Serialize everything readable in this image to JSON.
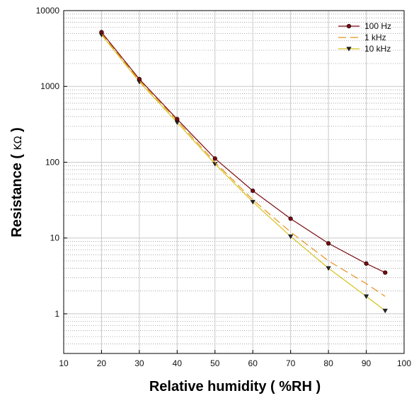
{
  "chart_data": {
    "type": "line",
    "title": "",
    "xlabel": "Relative humidity ( %RH )",
    "ylabel": "Resistance ( ",
    "ylabel_unit": "KΩ",
    "ylabel_end": " )",
    "x_scale": "linear",
    "y_scale": "log",
    "xlim": [
      10,
      100
    ],
    "ylim": [
      0.3,
      10000
    ],
    "x_ticks": [
      "10",
      "20",
      "30",
      "40",
      "50",
      "60",
      "70",
      "80",
      "90",
      "100"
    ],
    "y_ticks": [
      "1",
      "10",
      "100",
      "1000",
      "10000"
    ],
    "grid": "on",
    "legend_position": "top-right",
    "series": [
      {
        "name": "100 Hz",
        "color": "#7a0a10",
        "marker": "circle",
        "line": "solid",
        "x": [
          20,
          30,
          40,
          50,
          60,
          70,
          80,
          90,
          95
        ],
        "y": [
          5200,
          1250,
          370,
          112,
          42,
          18,
          8.5,
          4.6,
          3.5
        ]
      },
      {
        "name": "1 kHz",
        "color": "#e8901c",
        "marker": "none",
        "line": "dashed",
        "x": [
          20,
          30,
          40,
          50,
          60,
          70,
          80,
          90,
          95
        ],
        "y": [
          5000,
          1200,
          355,
          100,
          32,
          12,
          5.0,
          2.5,
          1.7
        ]
      },
      {
        "name": "10 kHz",
        "color": "#d4c21a",
        "marker": "triangle-down",
        "line": "solid",
        "x": [
          20,
          30,
          40,
          50,
          60,
          70,
          80,
          90,
          95
        ],
        "y": [
          4800,
          1150,
          335,
          95,
          30,
          10.5,
          4.0,
          1.7,
          1.1
        ]
      }
    ]
  }
}
